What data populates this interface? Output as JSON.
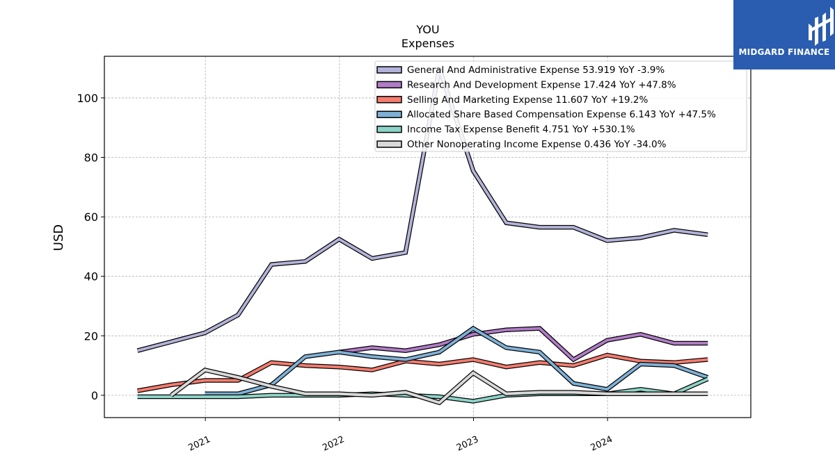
{
  "brand": {
    "name": "MIDGARD FINANCE",
    "colors": {
      "background": "#2a5db0",
      "text": "#ffffff"
    }
  },
  "chart_data": {
    "type": "line",
    "title": "YOU",
    "subtitle": "Expenses",
    "xlabel": "",
    "ylabel": "USD",
    "xlim": [
      "2020-04-01",
      "2025-01-25"
    ],
    "ylim": [
      -7.5,
      114
    ],
    "x_ticks": [
      "2021",
      "2022",
      "2023",
      "2024"
    ],
    "y_ticks": [
      0,
      20,
      40,
      60,
      80,
      100
    ],
    "grid": true,
    "legend_position": "top-right",
    "x": [
      "2020-06-30",
      "2020-09-30",
      "2020-12-31",
      "2021-03-31",
      "2021-06-30",
      "2021-09-30",
      "2021-12-31",
      "2022-03-31",
      "2022-06-30",
      "2022-09-30",
      "2022-12-31",
      "2023-03-31",
      "2023-06-30",
      "2023-09-30",
      "2023-12-31",
      "2024-03-31",
      "2024-06-30",
      "2024-09-30"
    ],
    "series": [
      {
        "name": "General And Administrative Expense",
        "legend_label": "General And Administrative Expense  53.919 YoY -3.9%",
        "color": "#b3b3d9",
        "values": [
          15,
          18,
          21,
          27,
          44,
          45,
          52.5,
          46,
          48,
          110,
          75.5,
          58,
          56.5,
          56.5,
          52,
          53,
          55.5,
          54
        ]
      },
      {
        "name": "Research And Development Expense",
        "legend_label": "Research And Development Expense  17.424 YoY +47.8%",
        "color": "#b07cc6",
        "values": [
          null,
          null,
          null,
          null,
          null,
          null,
          14.5,
          16,
          15,
          17,
          20.5,
          22,
          22.5,
          12,
          18.5,
          20.5,
          17.5,
          17.5
        ]
      },
      {
        "name": "Selling And Marketing Expense",
        "legend_label": "Selling And Marketing Expense  11.607 YoY +19.2%",
        "color": "#f47c6e",
        "values": [
          1.5,
          3.5,
          5,
          5,
          11,
          10,
          9.5,
          8.5,
          11.5,
          10.5,
          12,
          9.5,
          11,
          10,
          13.5,
          11.5,
          11,
          12
        ]
      },
      {
        "name": "Allocated Share Based Compensation Expense",
        "legend_label": "Allocated Share Based Compensation Expense  6.143 YoY +47.5%",
        "color": "#7eb0d5",
        "values": [
          null,
          null,
          0.5,
          0.5,
          3.5,
          13,
          14.5,
          13,
          12,
          14.5,
          22.5,
          16,
          14.5,
          4,
          2,
          10.5,
          10,
          6
        ]
      },
      {
        "name": "Income Tax Expense Benefit",
        "legend_label": "Income Tax Expense Benefit  4.751 YoY +530.1%",
        "color": "#8dd3c7",
        "values": [
          -0.5,
          -0.5,
          -0.5,
          -0.5,
          0,
          0,
          0,
          0.5,
          0,
          -0.5,
          -2,
          0,
          0.5,
          0.5,
          0.5,
          2,
          0.5,
          5.5
        ]
      },
      {
        "name": "Other Nonoperating Income Expense",
        "legend_label": "Other Nonoperating Income Expense  0.436 YoY -34.0%",
        "color": "#d9d9d9",
        "values": [
          null,
          0,
          8.5,
          6,
          3,
          0.5,
          0.5,
          0,
          1,
          -2.5,
          7.5,
          0.5,
          1,
          1,
          0.5,
          0.5,
          0.5,
          0.5
        ]
      }
    ]
  }
}
